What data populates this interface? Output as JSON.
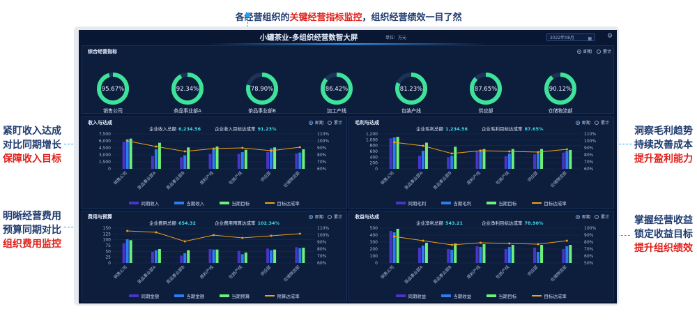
{
  "annotations": {
    "top": {
      "prefix": "各经营组织的",
      "emph": "关键经营指标监控",
      "suffix": "，组织经营绩效一目了然"
    },
    "left1": {
      "l1": "紧盯收入达成",
      "l2": "对比同期增长",
      "l3": "保障收入目标"
    },
    "left2": {
      "l1": "明晰经营费用",
      "l2": "预算同期对比",
      "l3": "组织费用监控"
    },
    "right1": {
      "l1": "洞察毛利趋势",
      "l2": "持续改善成本",
      "l3": "提升盈利能力"
    },
    "right2": {
      "l1": "掌握经营收益",
      "l2": "锁定收益目标",
      "l3": "提升组织绩效"
    }
  },
  "dashboard": {
    "title": "小罐茶业-多组织经营数智大屏",
    "unit": "单位：万元",
    "date": "2022年08月",
    "icons": {
      "calendar": "calendar-icon",
      "settings": "gear-icon"
    },
    "colors": {
      "bg": "#0a1733",
      "gauge": "#3ee39a",
      "prev": "#4a35c9",
      "curr": "#2f7cf0",
      "target": "#6cf07a",
      "rate": "#f0a21a"
    }
  },
  "overview": {
    "title": "综合经营指标",
    "radio_current": "即期",
    "radio_cum": "累计",
    "gauges": [
      {
        "label": "销售公司",
        "value": "95.67%",
        "pct": 95.67
      },
      {
        "label": "茶品事业部A",
        "value": "92.34%",
        "pct": 92.34
      },
      {
        "label": "茶品事业部B",
        "value": "78.90%",
        "pct": 78.9
      },
      {
        "label": "加工产线",
        "value": "86.42%",
        "pct": 86.42
      },
      {
        "label": "包装产线",
        "value": "81.23%",
        "pct": 81.23
      },
      {
        "label": "供应部",
        "value": "87.65%",
        "pct": 87.65
      },
      {
        "label": "仓储物流部",
        "value": "90.12%",
        "pct": 90.12
      }
    ]
  },
  "panels": {
    "revenue": {
      "title": "收入与达成",
      "radio_current": "即期",
      "radio_cum": "累计",
      "stat1_label": "企业收入总额",
      "stat1_value": "6,234.56",
      "stat2_label": "企业收入目标达成率",
      "stat2_value": "91.23%",
      "legend": [
        "同期收入",
        "当期收入",
        "当期目标",
        "目标达成率"
      ]
    },
    "gross": {
      "title": "毛利与达成",
      "radio_current": "即期",
      "radio_cum": "累计",
      "stat1_label": "企业毛利总额",
      "stat1_value": "1,234.56",
      "stat2_label": "企业毛利目标达成率",
      "stat2_value": "87.65%",
      "legend": [
        "同期毛利",
        "当期毛利",
        "当期目标",
        "目标达成率"
      ]
    },
    "expense": {
      "title": "费用与预算",
      "radio_current": "即期",
      "radio_cum": "累计",
      "stat1_label": "企业费用总额",
      "stat1_value": "654.32",
      "stat2_label": "企业费用预算达成率",
      "stat2_value": "102.34%",
      "legend": [
        "同期金额",
        "当期金额",
        "当期预算",
        "预算达成率"
      ]
    },
    "profit": {
      "title": "收益与达成",
      "radio_current": "即期",
      "radio_cum": "累计",
      "stat1_label": "企业净利总额",
      "stat1_value": "543.21",
      "stat2_label": "企业净利目标达成率",
      "stat2_value": "78.90%",
      "legend": [
        "同期收益",
        "当期收益",
        "当期目标",
        "目标达成率"
      ]
    }
  },
  "chart_data": [
    {
      "type": "bar",
      "name": "收入与达成",
      "categories": [
        "销售公司",
        "茶品事业部A",
        "茶品事业部B",
        "原料产线",
        "包装产线",
        "供应部",
        "仓储物流部"
      ],
      "yticks_left": [
        "0",
        "1,500",
        "3,000",
        "4,500",
        "6,000",
        "7,500"
      ],
      "yticks_right": [
        "60%",
        "70%",
        "80%",
        "90%",
        "100%",
        "110%"
      ],
      "ylim": [
        0,
        7500
      ],
      "y2lim": [
        60,
        110
      ],
      "series": [
        {
          "name": "同期收入",
          "values": [
            5800,
            2700,
            2500,
            3200,
            3200,
            3600,
            3300
          ]
        },
        {
          "name": "当期收入",
          "values": [
            6400,
            4200,
            2900,
            4200,
            3600,
            4400,
            3500
          ]
        },
        {
          "name": "当期目标",
          "values": [
            6500,
            5600,
            4600,
            4800,
            4100,
            4600,
            4200
          ]
        },
        {
          "name": "目标达成率",
          "axis": "right",
          "values": [
            100,
            92,
            85,
            89,
            90,
            86,
            91
          ]
        }
      ]
    },
    {
      "type": "bar",
      "name": "毛利与达成",
      "categories": [
        "销售公司",
        "茶品事业部A",
        "茶品事业部B",
        "原料产线",
        "包装产线",
        "供应部",
        "仓储物流部"
      ],
      "yticks_left": [
        "0",
        "200",
        "400",
        "600",
        "800",
        "1,000",
        "1,200"
      ],
      "yticks_right": [
        "60%",
        "70%",
        "80%",
        "90%",
        "100%",
        "110%"
      ],
      "ylim": [
        0,
        1200
      ],
      "y2lim": [
        60,
        110
      ],
      "series": [
        {
          "name": "同期毛利",
          "values": [
            1050,
            450,
            400,
            600,
            440,
            500,
            560
          ]
        },
        {
          "name": "当期毛利",
          "values": [
            1080,
            620,
            450,
            660,
            520,
            540,
            620
          ]
        },
        {
          "name": "当期目标",
          "values": [
            1100,
            900,
            760,
            680,
            680,
            680,
            650
          ]
        },
        {
          "name": "目标达成率",
          "axis": "right",
          "values": [
            98,
            93,
            82,
            86,
            85,
            84,
            88
          ]
        }
      ]
    },
    {
      "type": "bar",
      "name": "费用与预算",
      "categories": [
        "销售公司",
        "茶品事业部A",
        "茶品事业部B",
        "原料产线",
        "包装产线",
        "供应部",
        "仓储物流部"
      ],
      "yticks_left": [
        "0",
        "25",
        "50",
        "75",
        "100",
        "125",
        "150"
      ],
      "yticks_right": [
        "60%",
        "70%",
        "80%",
        "90%",
        "100%",
        "110%"
      ],
      "ylim": [
        0,
        150
      ],
      "y2lim": [
        60,
        110
      ],
      "series": [
        {
          "name": "同期金额",
          "values": [
            85,
            48,
            32,
            60,
            52,
            62,
            68
          ]
        },
        {
          "name": "当期金额",
          "values": [
            102,
            55,
            42,
            58,
            38,
            55,
            64
          ]
        },
        {
          "name": "当期预算",
          "values": [
            98,
            60,
            55,
            58,
            45,
            58,
            66
          ]
        },
        {
          "name": "预算达成率",
          "axis": "right",
          "values": [
            106,
            104,
            91,
            100,
            96,
            99,
            102
          ]
        }
      ]
    },
    {
      "type": "bar",
      "name": "收益与达成",
      "categories": [
        "销售公司",
        "茶品事业部A",
        "茶品事业部B",
        "原料产线",
        "包装产线",
        "供应部",
        "仓储物流部"
      ],
      "yticks_left": [
        "0",
        "100",
        "200",
        "300",
        "400",
        "500"
      ],
      "yticks_right": [
        "50%",
        "60%",
        "70%",
        "80%",
        "90%",
        "100%"
      ],
      "ylim": [
        0,
        500
      ],
      "y2lim": [
        50,
        100
      ],
      "series": [
        {
          "name": "同期收益",
          "values": [
            460,
            220,
            200,
            240,
            200,
            220,
            200
          ]
        },
        {
          "name": "当期收益",
          "values": [
            440,
            250,
            190,
            230,
            230,
            160,
            240
          ]
        },
        {
          "name": "当期目标",
          "values": [
            490,
            290,
            280,
            270,
            260,
            260,
            260
          ]
        },
        {
          "name": "目标达成率",
          "axis": "right",
          "values": [
            88,
            82,
            76,
            79,
            78,
            77,
            82
          ]
        }
      ]
    }
  ]
}
